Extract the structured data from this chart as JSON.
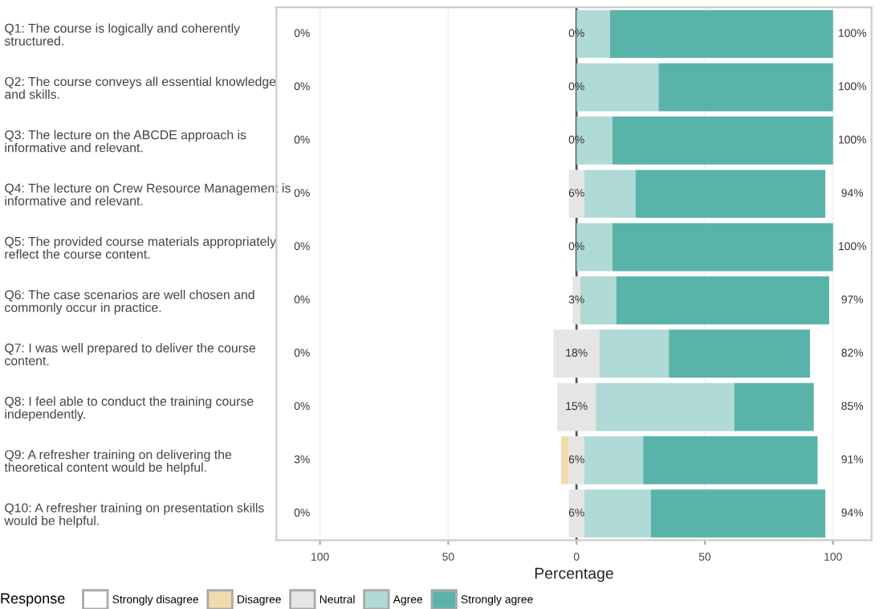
{
  "chart_data": {
    "type": "bar",
    "orientation": "horizontal",
    "categories": [
      "Q1: The course is logically and coherently\nstructured.",
      "Q2: The course conveys all essential knowledge\nand skills.",
      "Q3: The lecture on the ABCDE approach is\ninformative and relevant.",
      "Q4: The lecture on Crew Resource Management is\ninformative and relevant.",
      "Q5: The provided course materials appropriately\nreflect the course content.",
      "Q6: The case scenarios are well chosen and\ncommonly occur in practice.",
      "Q7: I was well prepared to deliver the course\ncontent.",
      "Q8: I feel able to conduct the training course\nindependently.",
      "Q9: A refresher training on delivering the\ntheoretical content would be helpful.",
      "Q10: A refresher training on presentation skills\nwould be helpful."
    ],
    "series": [
      {
        "name": "Strongly disagree",
        "color": "#ffffff",
        "values": [
          0,
          0,
          0,
          0,
          0,
          0,
          0,
          0,
          0,
          0
        ]
      },
      {
        "name": "Disagree",
        "color": "#f0dbaf",
        "values": [
          0,
          0,
          0,
          0,
          0,
          0,
          0,
          0,
          3,
          0
        ],
        "base": [
          null,
          null,
          null,
          null,
          null,
          null,
          null,
          null,
          -6,
          null
        ]
      },
      {
        "name": "Neutral",
        "color": "#e5e5e5",
        "values": [
          0,
          0,
          0,
          6,
          0,
          3,
          18,
          15,
          6,
          6
        ],
        "base": [
          null,
          null,
          null,
          -3,
          null,
          -1.5,
          -9,
          -7.5,
          -3,
          -3
        ]
      },
      {
        "name": "Agree",
        "color": "#afdad6",
        "values": [
          13,
          32,
          14,
          20,
          14,
          14,
          27,
          54,
          23,
          26
        ],
        "base": [
          0,
          0,
          0,
          3,
          0,
          1.5,
          9,
          7.5,
          3,
          3
        ]
      },
      {
        "name": "Strongly agree",
        "color": "#5ab3a9",
        "values": [
          87,
          68,
          86,
          74,
          86,
          83,
          55,
          31,
          68,
          68
        ],
        "base": [
          13,
          32,
          14,
          23,
          14,
          15.5,
          36,
          61.5,
          26,
          29
        ]
      }
    ],
    "annotations": [
      "0%",
      "0%",
      "100%",
      "0%",
      "0%",
      "100%",
      "0%",
      "0%",
      "100%",
      "0%",
      "6%",
      "94%",
      "0%",
      "0%",
      "100%",
      "0%",
      "3%",
      "97%",
      "0%",
      "18%",
      "82%",
      "0%",
      "15%",
      "85%",
      "3%",
      "6%",
      "91%",
      "0%",
      "6%",
      "94%"
    ],
    "xlim": [
      -117,
      115
    ],
    "xticks": [
      {
        "value": -100,
        "label": "100"
      },
      {
        "value": -50,
        "label": "50"
      },
      0,
      50,
      100
    ],
    "xlabel": "Percentage",
    "legend_title": "Response",
    "legend": "bottom",
    "grid": "x",
    "ref_lines": [
      {
        "axis": "x",
        "value": 0,
        "color": "#555555"
      }
    ]
  }
}
